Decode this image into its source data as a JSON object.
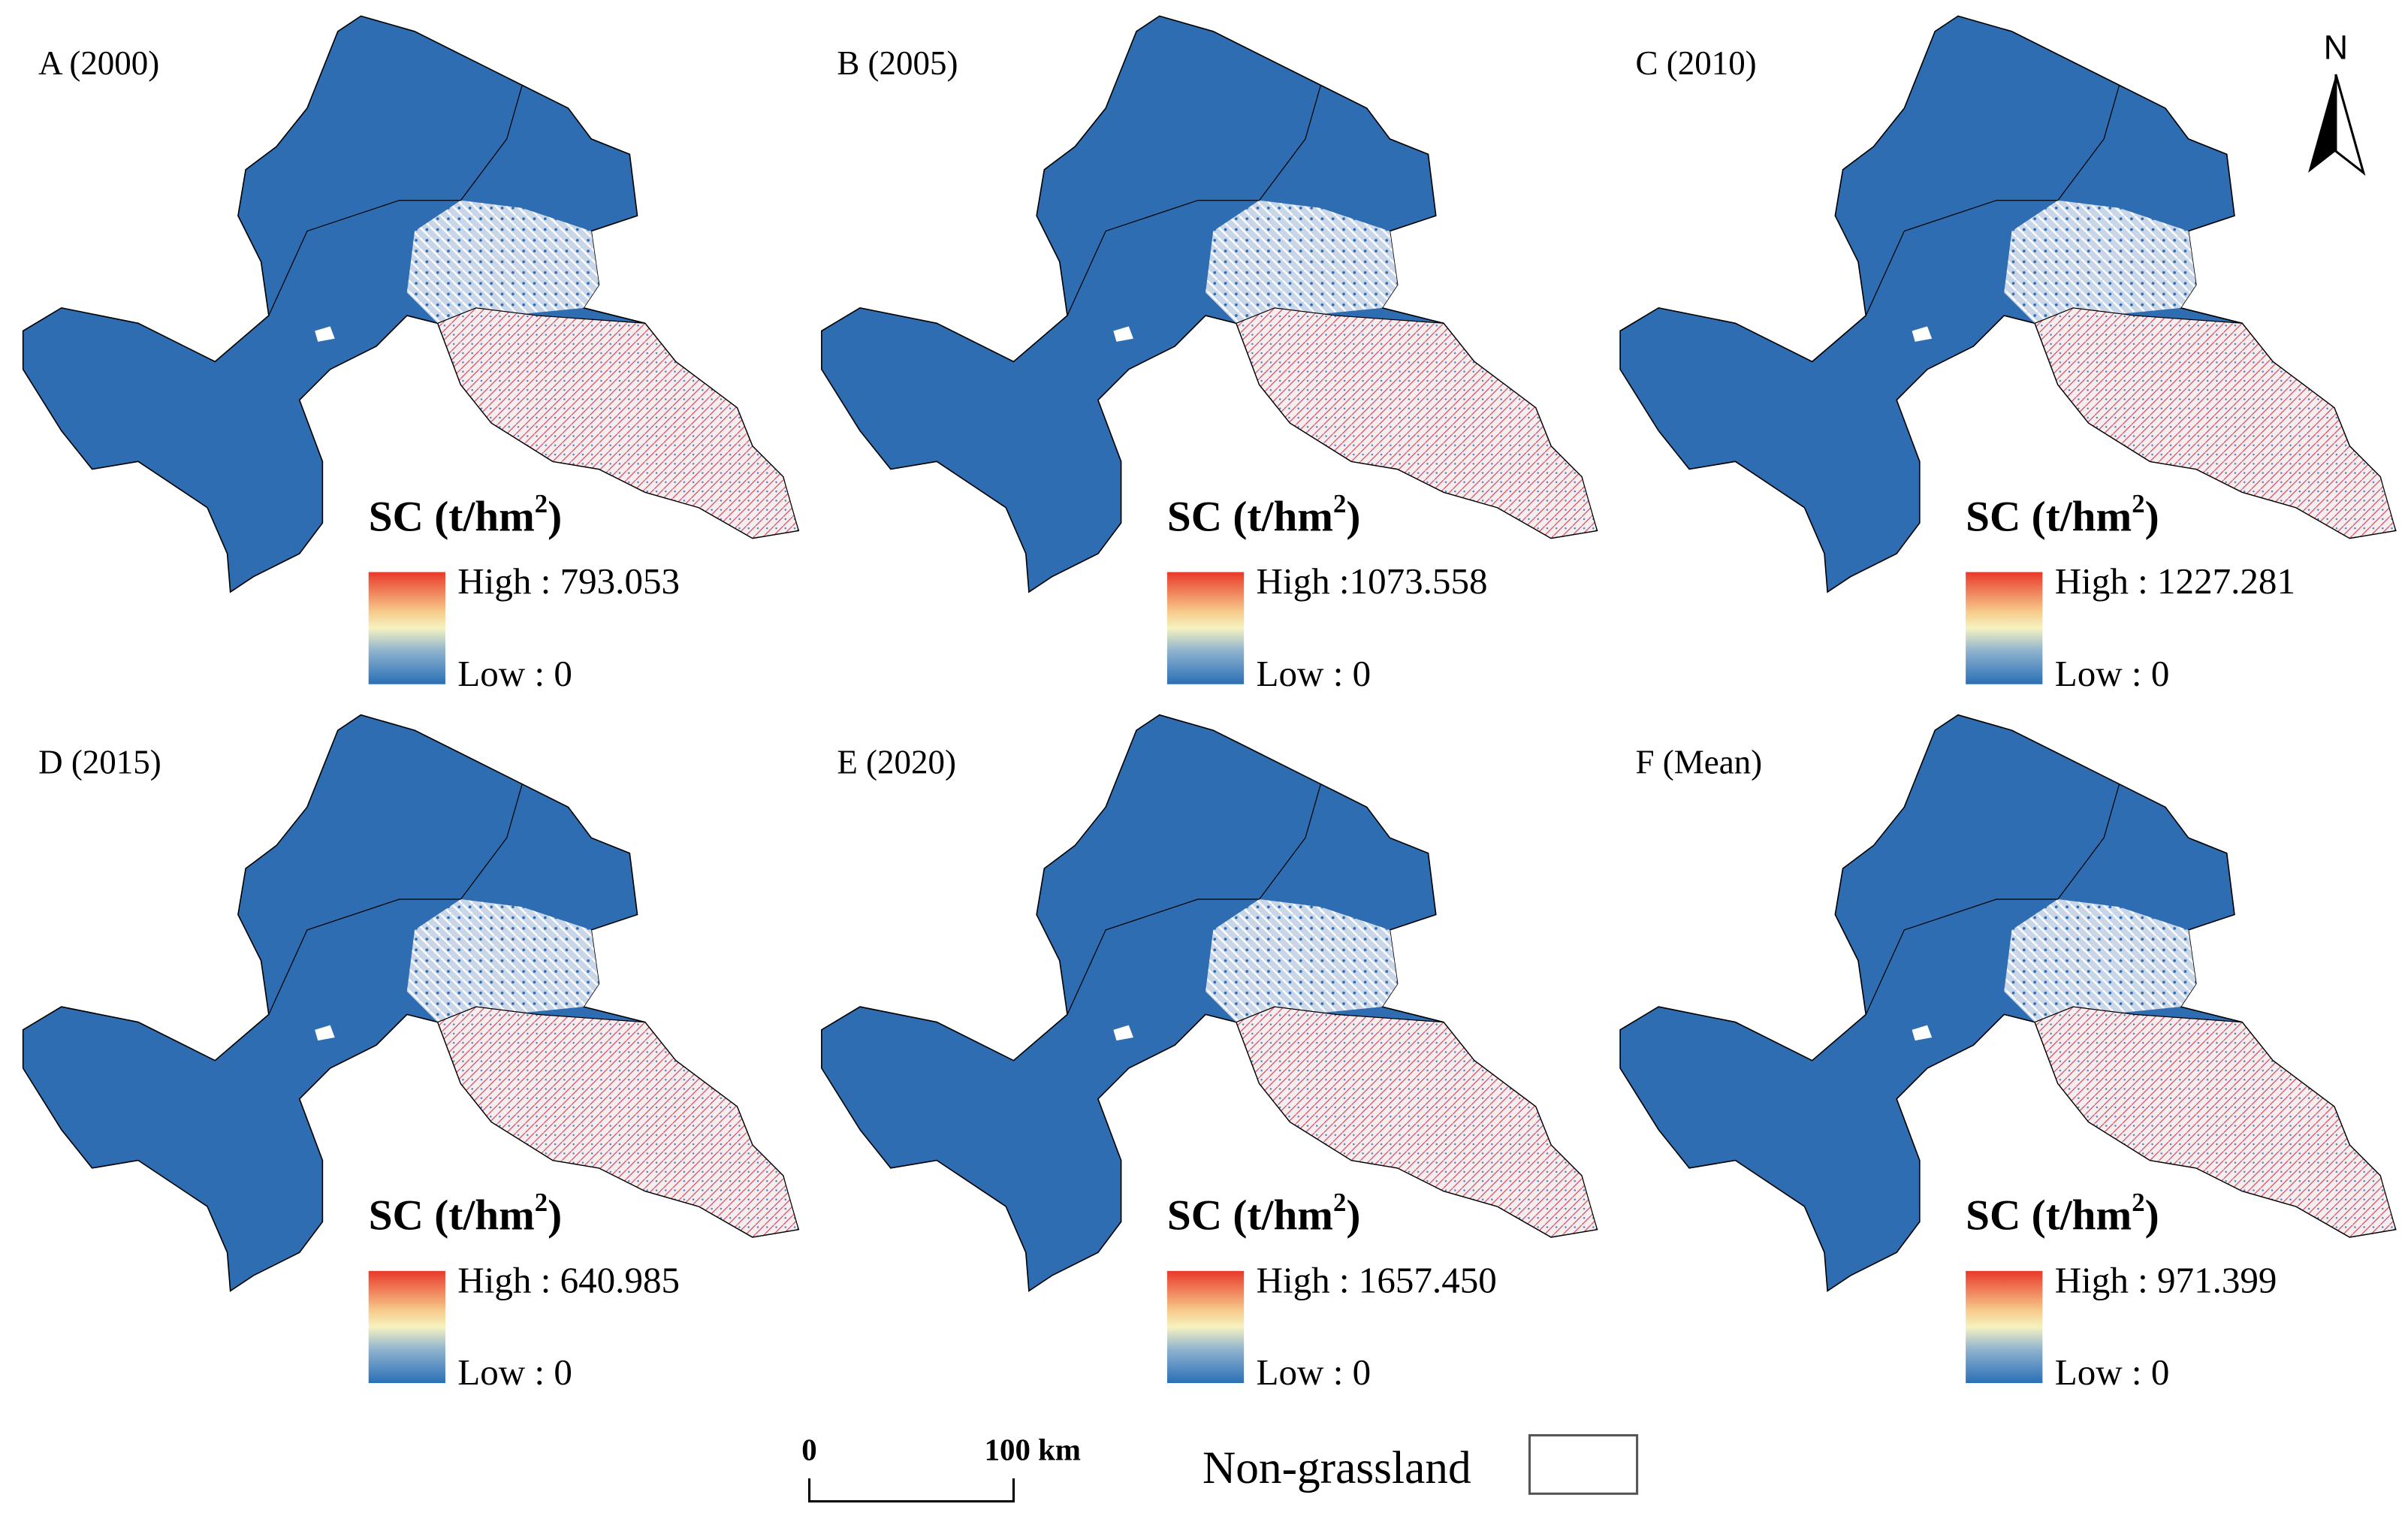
{
  "panels": [
    {
      "label": "A (2000)",
      "legend_title": {
        "main": "SC (t/hm",
        "sup": "2",
        "end": ")"
      },
      "high": "High : 793.053",
      "low": "Low : 0"
    },
    {
      "label": "B (2005)",
      "legend_title": {
        "main": "SC (t/hm",
        "sup": "2",
        "end": ")"
      },
      "high": "High :1073.558",
      "low": "Low : 0"
    },
    {
      "label": "C (2010)",
      "legend_title": {
        "main": "SC (t/hm",
        "sup": "2",
        "end": ")"
      },
      "high": "High : 1227.281",
      "low": "Low : 0"
    },
    {
      "label": "D (2015)",
      "legend_title": {
        "main": "SC (t/hm",
        "sup": "2",
        "end": ")"
      },
      "high": "High : 640.985",
      "low": "Low : 0"
    },
    {
      "label": "E (2020)",
      "legend_title": {
        "main": "SC (t/hm",
        "sup": "2",
        "end": ")"
      },
      "high": "High : 1657.450",
      "low": "Low : 0"
    },
    {
      "label": "F (Mean)",
      "legend_title": {
        "main": "SC (t/hm",
        "sup": "2",
        "end": ")"
      },
      "high": "High : 971.399",
      "low": "Low : 0"
    }
  ],
  "north_arrow": "N",
  "scale_bar": {
    "start": "0",
    "end": "100 km"
  },
  "non_grassland_legend": "Non-grassland"
}
